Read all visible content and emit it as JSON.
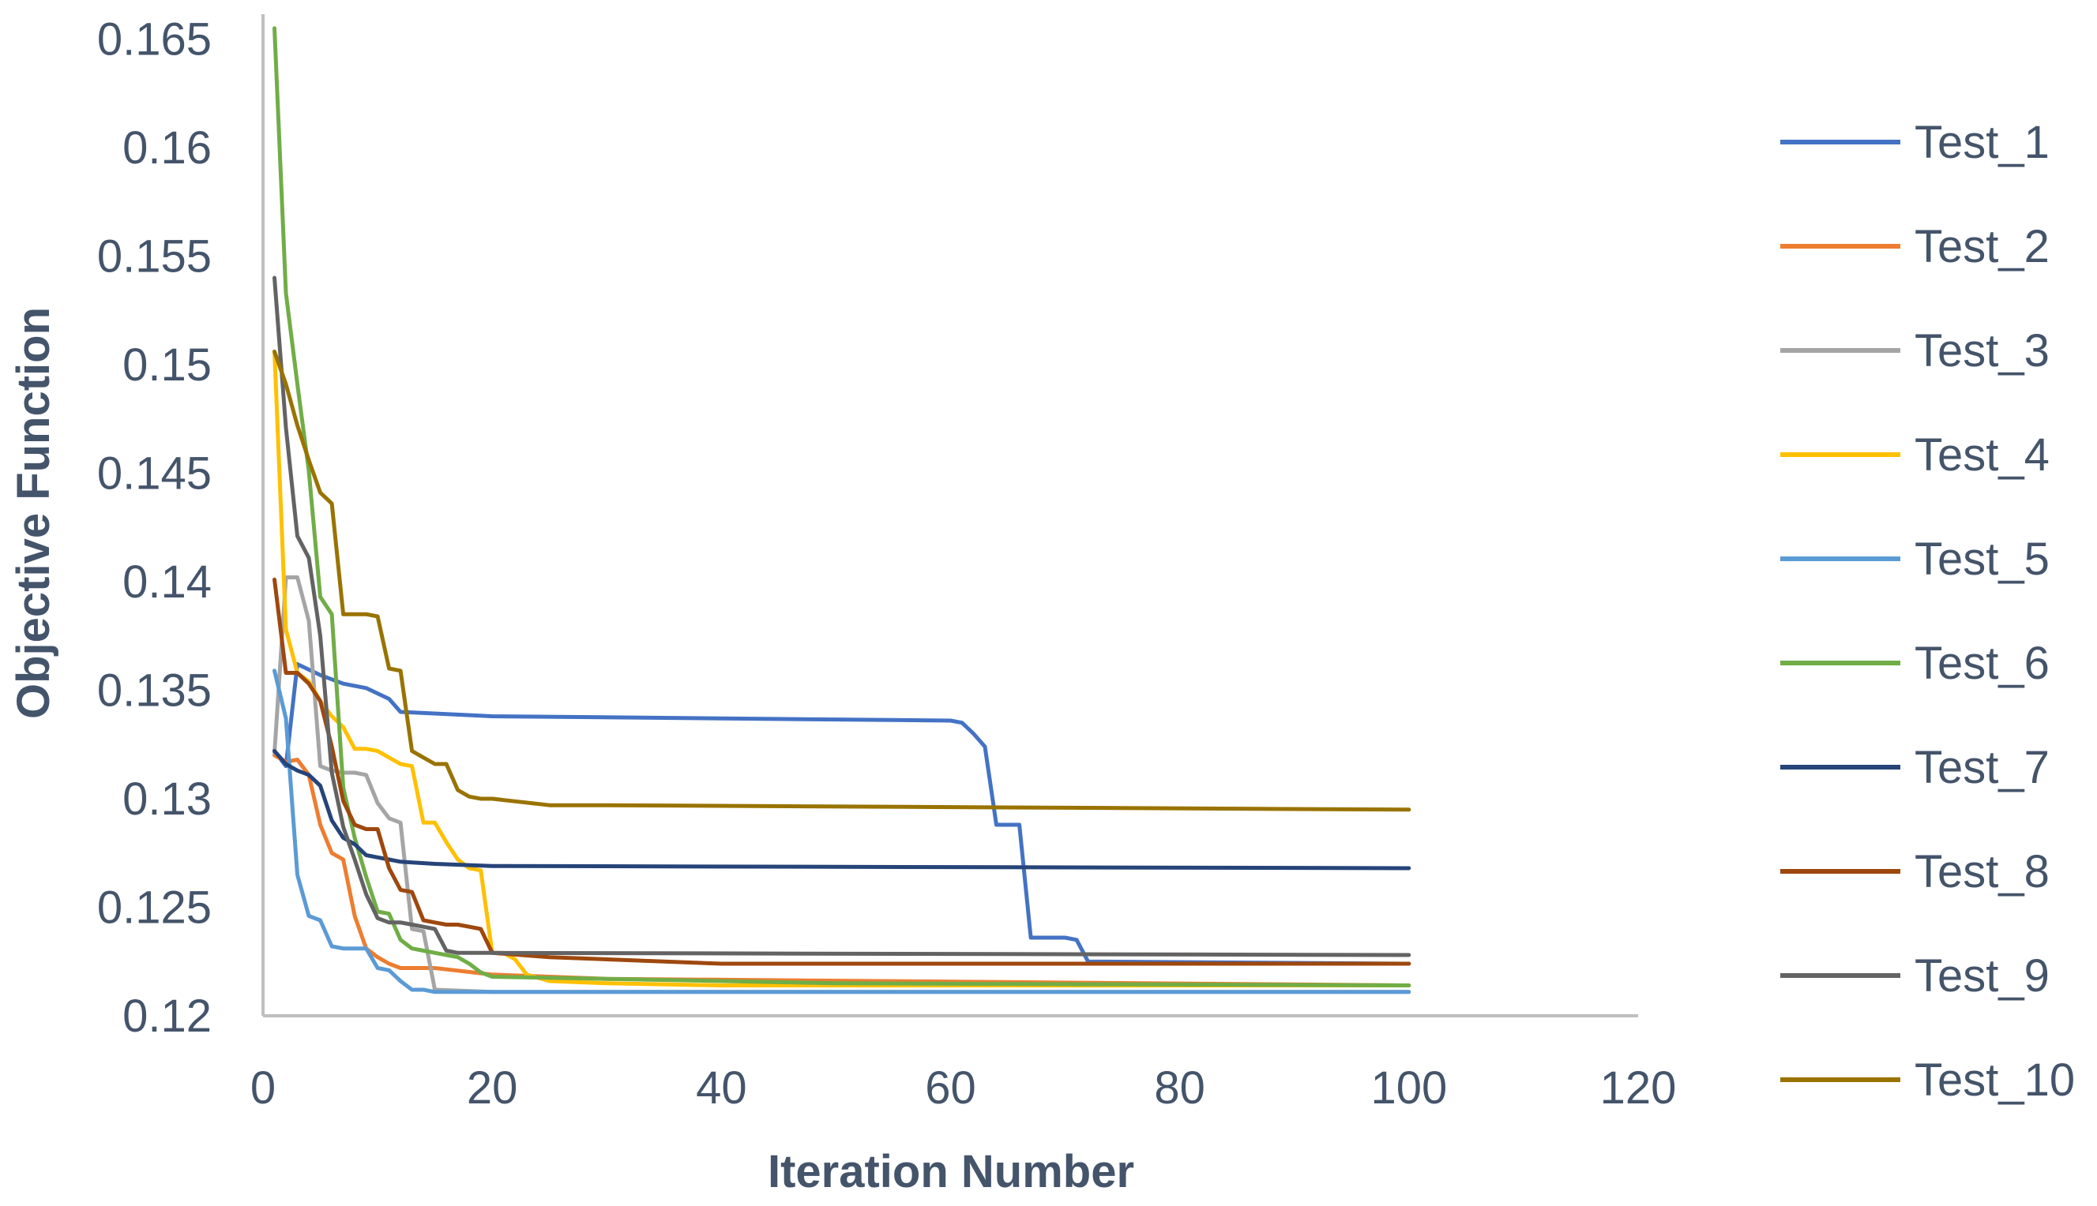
{
  "chart_data": {
    "type": "line",
    "title": "",
    "xlabel": "Iteration Number",
    "ylabel": "Objective Function",
    "xlim": [
      0,
      120
    ],
    "ylim": [
      0.12,
      0.166
    ],
    "x_ticks": [
      0,
      20,
      40,
      60,
      80,
      100,
      120
    ],
    "x_tick_labels": [
      "0",
      "20",
      "40",
      "60",
      "80",
      "100",
      "120"
    ],
    "y_ticks": [
      0.12,
      0.125,
      0.13,
      0.135,
      0.14,
      0.145,
      0.15,
      0.155,
      0.16,
      0.165
    ],
    "y_tick_labels": [
      "0.12",
      "0.125",
      "0.13",
      "0.135",
      "0.14",
      "0.145",
      "0.15",
      "0.155",
      "0.16",
      "0.165"
    ],
    "grid": false,
    "legend_position": "right",
    "series": [
      {
        "name": "Test_1",
        "color": "#4472c4",
        "x": [
          1,
          2,
          3,
          5,
          7,
          9,
          11,
          12,
          20,
          40,
          60,
          61,
          62,
          63,
          64,
          65,
          66,
          67,
          68,
          70,
          71,
          72,
          100
        ],
        "y": [
          0.1322,
          0.1315,
          0.1362,
          0.1357,
          0.1353,
          0.1351,
          0.1346,
          0.134,
          0.1338,
          0.1337,
          0.1336,
          0.1335,
          0.133,
          0.1324,
          0.1288,
          0.1288,
          0.1288,
          0.1236,
          0.1236,
          0.1236,
          0.1235,
          0.1225,
          0.1224
        ]
      },
      {
        "name": "Test_2",
        "color": "#ed7d31",
        "x": [
          1,
          2,
          3,
          4,
          5,
          6,
          7,
          8,
          9,
          10,
          11,
          12,
          15,
          20,
          30,
          100
        ],
        "y": [
          0.132,
          0.1317,
          0.1318,
          0.1311,
          0.1288,
          0.1275,
          0.1272,
          0.1246,
          0.1231,
          0.1227,
          0.1224,
          0.1222,
          0.1222,
          0.1219,
          0.1217,
          0.1214
        ]
      },
      {
        "name": "Test_3",
        "color": "#a5a5a5",
        "x": [
          1,
          2,
          3,
          4,
          5,
          6,
          7,
          8,
          9,
          10,
          11,
          12,
          13,
          14,
          15,
          20,
          100
        ],
        "y": [
          0.1321,
          0.1402,
          0.1402,
          0.1382,
          0.1315,
          0.1313,
          0.1312,
          0.1312,
          0.1311,
          0.1298,
          0.1291,
          0.1289,
          0.124,
          0.1239,
          0.1212,
          0.1211,
          0.1211
        ]
      },
      {
        "name": "Test_4",
        "color": "#ffc000",
        "x": [
          1,
          2,
          3,
          4,
          5,
          6,
          7,
          8,
          9,
          10,
          11,
          12,
          13,
          14,
          15,
          16,
          17,
          18,
          19,
          20,
          21,
          22,
          23,
          25,
          30,
          40,
          100
        ],
        "y": [
          0.1506,
          0.1378,
          0.1358,
          0.1354,
          0.1345,
          0.1338,
          0.1333,
          0.1323,
          0.1323,
          0.1322,
          0.1319,
          0.1316,
          0.1315,
          0.1289,
          0.1289,
          0.128,
          0.1272,
          0.1268,
          0.1267,
          0.1229,
          0.1229,
          0.1226,
          0.1219,
          0.1216,
          0.1215,
          0.1214,
          0.1214
        ]
      },
      {
        "name": "Test_5",
        "color": "#5b9bd5",
        "x": [
          1,
          2,
          3,
          4,
          5,
          6,
          7,
          8,
          9,
          10,
          11,
          12,
          13,
          14,
          15,
          20,
          100
        ],
        "y": [
          0.1359,
          0.1337,
          0.1265,
          0.1246,
          0.1244,
          0.1232,
          0.1231,
          0.1231,
          0.1231,
          0.1222,
          0.1221,
          0.1216,
          0.1212,
          0.1212,
          0.1211,
          0.1211,
          0.1211
        ]
      },
      {
        "name": "Test_6",
        "color": "#70ad47",
        "x": [
          1,
          2,
          3,
          4,
          5,
          6,
          7,
          8,
          9,
          10,
          11,
          12,
          13,
          14,
          15,
          16,
          17,
          18,
          19,
          20,
          30,
          50,
          100
        ],
        "y": [
          0.1655,
          0.1533,
          0.1491,
          0.1451,
          0.1393,
          0.1385,
          0.1305,
          0.1282,
          0.1264,
          0.1248,
          0.1247,
          0.1235,
          0.1231,
          0.123,
          0.1229,
          0.1228,
          0.1227,
          0.1224,
          0.122,
          0.1218,
          0.1217,
          0.1215,
          0.1214
        ]
      },
      {
        "name": "Test_7",
        "color": "#264478",
        "x": [
          1,
          2,
          3,
          4,
          5,
          6,
          7,
          8,
          9,
          10,
          11,
          12,
          15,
          20,
          100
        ],
        "y": [
          0.1322,
          0.1316,
          0.1313,
          0.1311,
          0.1306,
          0.129,
          0.1282,
          0.1279,
          0.1274,
          0.1273,
          0.1272,
          0.1271,
          0.127,
          0.1269,
          0.1268
        ]
      },
      {
        "name": "Test_8",
        "color": "#9e480e",
        "x": [
          1,
          2,
          3,
          4,
          5,
          6,
          7,
          8,
          9,
          10,
          11,
          12,
          13,
          14,
          15,
          16,
          17,
          18,
          19,
          20,
          25,
          40,
          100
        ],
        "y": [
          0.1401,
          0.1358,
          0.1358,
          0.1353,
          0.1345,
          0.1324,
          0.1299,
          0.1288,
          0.1286,
          0.1286,
          0.1268,
          0.1258,
          0.1257,
          0.1244,
          0.1243,
          0.1242,
          0.1242,
          0.1241,
          0.124,
          0.1229,
          0.1227,
          0.1224,
          0.1224
        ]
      },
      {
        "name": "Test_9",
        "color": "#636363",
        "x": [
          1,
          2,
          3,
          4,
          5,
          6,
          7,
          8,
          9,
          10,
          11,
          12,
          13,
          14,
          15,
          16,
          17,
          20,
          100
        ],
        "y": [
          0.154,
          0.1471,
          0.1421,
          0.1411,
          0.1375,
          0.1312,
          0.1287,
          0.1272,
          0.1256,
          0.1245,
          0.1243,
          0.1243,
          0.1242,
          0.1241,
          0.124,
          0.123,
          0.1229,
          0.1229,
          0.1228
        ]
      },
      {
        "name": "Test_10",
        "color": "#997300",
        "x": [
          1,
          2,
          3,
          4,
          5,
          6,
          7,
          8,
          9,
          10,
          11,
          12,
          13,
          14,
          15,
          16,
          17,
          18,
          19,
          20,
          25,
          30,
          100
        ],
        "y": [
          0.1506,
          0.1491,
          0.1472,
          0.1456,
          0.1441,
          0.1436,
          0.1385,
          0.1385,
          0.1385,
          0.1384,
          0.136,
          0.1359,
          0.1322,
          0.1319,
          0.1316,
          0.1316,
          0.1304,
          0.1301,
          0.13,
          0.13,
          0.1297,
          0.1297,
          0.1295
        ]
      }
    ]
  }
}
